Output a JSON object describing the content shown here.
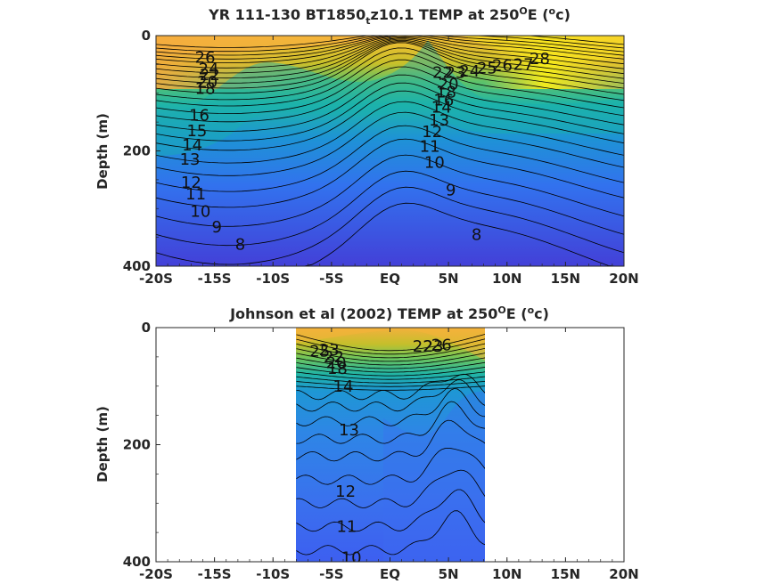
{
  "chart_data": [
    {
      "type": "heatmap",
      "subtype": "filled-contour",
      "title": "YR 111-130 BT1850",
      "title_subscript": "t",
      "title_rest": "z10.1 TEMP at 250",
      "title_super": "O",
      "title_tail": "E (",
      "title_super2": "o",
      "title_end": "c)",
      "ylabel": "Depth (m)",
      "xlabel": "",
      "x_ticks": [
        "-20S",
        "-15S",
        "-10S",
        "-5S",
        "EQ",
        "5N",
        "10N",
        "15N",
        "20N"
      ],
      "x_tick_values": [
        -20,
        -15,
        -10,
        -5,
        0,
        5,
        10,
        15,
        20
      ],
      "y_ticks": [
        "0",
        "200",
        "400"
      ],
      "y_tick_values": [
        0,
        200,
        400
      ],
      "xlim": [
        -20,
        20
      ],
      "ylim": [
        0,
        400
      ],
      "y_reversed": true,
      "data_extent_x": [
        -20,
        20
      ],
      "colormap": "parula",
      "color_range": [
        7,
        30
      ],
      "contour_labels": [
        {
          "text": "26",
          "x": -15.8,
          "y": 38
        },
        {
          "text": "24",
          "x": -15.5,
          "y": 58
        },
        {
          "text": "22",
          "x": -15.4,
          "y": 68
        },
        {
          "text": "20",
          "x": -15.6,
          "y": 80
        },
        {
          "text": "18",
          "x": -15.8,
          "y": 92
        },
        {
          "text": "16",
          "x": -16.3,
          "y": 138
        },
        {
          "text": "15",
          "x": -16.5,
          "y": 165
        },
        {
          "text": "14",
          "x": -16.9,
          "y": 190
        },
        {
          "text": "13",
          "x": -17.1,
          "y": 215
        },
        {
          "text": "12",
          "x": -17.0,
          "y": 255
        },
        {
          "text": "11",
          "x": -16.6,
          "y": 275
        },
        {
          "text": "10",
          "x": -16.2,
          "y": 305
        },
        {
          "text": "9",
          "x": -14.8,
          "y": 332
        },
        {
          "text": "8",
          "x": -12.8,
          "y": 362
        },
        {
          "text": "22",
          "x": 4.5,
          "y": 64
        },
        {
          "text": "23",
          "x": 5.6,
          "y": 64
        },
        {
          "text": "24",
          "x": 6.8,
          "y": 62
        },
        {
          "text": "25",
          "x": 8.3,
          "y": 56
        },
        {
          "text": "26",
          "x": 9.6,
          "y": 52
        },
        {
          "text": "27",
          "x": 11.4,
          "y": 50
        },
        {
          "text": "28",
          "x": 12.8,
          "y": 40
        },
        {
          "text": "20",
          "x": 5.0,
          "y": 84
        },
        {
          "text": "18",
          "x": 4.8,
          "y": 98
        },
        {
          "text": "16",
          "x": 4.6,
          "y": 112
        },
        {
          "text": "14",
          "x": 4.4,
          "y": 124
        },
        {
          "text": "13",
          "x": 4.2,
          "y": 147
        },
        {
          "text": "12",
          "x": 3.6,
          "y": 167
        },
        {
          "text": "11",
          "x": 3.4,
          "y": 192
        },
        {
          "text": "10",
          "x": 3.8,
          "y": 220
        },
        {
          "text": "9",
          "x": 5.2,
          "y": 268
        },
        {
          "text": "8",
          "x": 7.4,
          "y": 345
        }
      ]
    },
    {
      "type": "heatmap",
      "subtype": "filled-contour",
      "title": "Johnson et al (2002) TEMP at 250",
      "title_super": "O",
      "title_tail": "E (",
      "title_super2": "o",
      "title_end": "c)",
      "ylabel": "Depth (m)",
      "xlabel": "",
      "x_ticks": [
        "-20S",
        "-15S",
        "-10S",
        "-5S",
        "EQ",
        "5N",
        "10N",
        "15N",
        "20N"
      ],
      "x_tick_values": [
        -20,
        -15,
        -10,
        -5,
        0,
        5,
        10,
        15,
        20
      ],
      "y_ticks": [
        "0",
        "200",
        "400"
      ],
      "y_tick_values": [
        0,
        200,
        400
      ],
      "xlim": [
        -20,
        20
      ],
      "ylim": [
        0,
        400
      ],
      "y_reversed": true,
      "data_extent_x": [
        -8,
        8.2
      ],
      "colormap": "parula",
      "color_range": [
        7,
        30
      ],
      "contour_labels": [
        {
          "text": "25",
          "x": -6.0,
          "y": 40
        },
        {
          "text": "23",
          "x": -5.2,
          "y": 38
        },
        {
          "text": "22",
          "x": -4.8,
          "y": 50
        },
        {
          "text": "20",
          "x": -4.6,
          "y": 60
        },
        {
          "text": "18",
          "x": -4.5,
          "y": 70
        },
        {
          "text": "14",
          "x": -4.0,
          "y": 100
        },
        {
          "text": "22",
          "x": 2.8,
          "y": 32
        },
        {
          "text": "23",
          "x": 3.7,
          "y": 32
        },
        {
          "text": "26",
          "x": 4.4,
          "y": 30
        },
        {
          "text": "13",
          "x": -3.5,
          "y": 175
        },
        {
          "text": "12",
          "x": -3.8,
          "y": 280
        },
        {
          "text": "11",
          "x": -3.7,
          "y": 340
        },
        {
          "text": "10",
          "x": -3.3,
          "y": 393
        }
      ]
    }
  ]
}
